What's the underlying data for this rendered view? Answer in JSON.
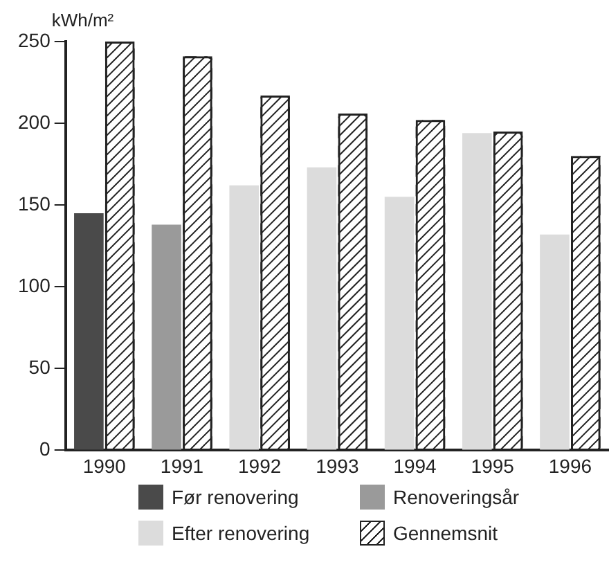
{
  "chart_data": {
    "type": "bar",
    "ylabel": "kWh/m²",
    "categories": [
      "1990",
      "1991",
      "1992",
      "1993",
      "1994",
      "1995",
      "1996"
    ],
    "series": [
      {
        "name": "Før renovering",
        "color": "#4a4a4a",
        "values": [
          145,
          null,
          null,
          null,
          null,
          null,
          null
        ]
      },
      {
        "name": "Renoveringsår",
        "color": "#9a9a9a",
        "values": [
          null,
          138,
          null,
          null,
          null,
          null,
          null
        ]
      },
      {
        "name": "Efter renovering",
        "color": "#dcdcdc",
        "values": [
          null,
          null,
          162,
          173,
          155,
          194,
          132
        ]
      },
      {
        "name": "Gennemsnit",
        "color": "#222222",
        "values": [
          250,
          241,
          217,
          206,
          202,
          195,
          180
        ]
      }
    ],
    "ylim": [
      0,
      250
    ],
    "yticks": [
      0,
      50,
      100,
      150,
      200,
      250
    ],
    "grid": false,
    "legend": "bottom"
  }
}
